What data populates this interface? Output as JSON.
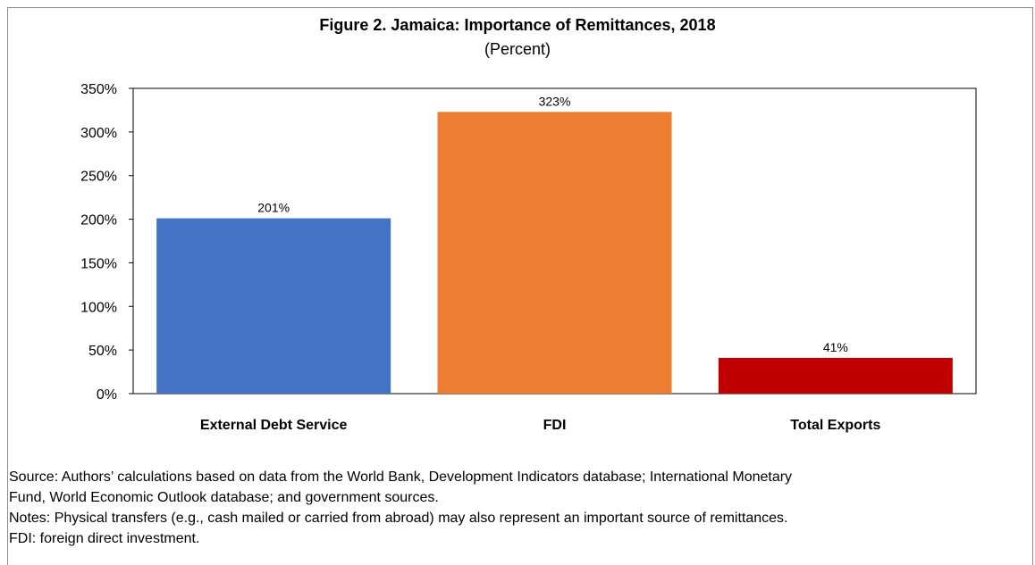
{
  "chart_data": {
    "type": "bar",
    "title": "Figure 2. Jamaica: Importance of Remittances, 2018",
    "subtitle": "(Percent)",
    "categories": [
      "External Debt Service",
      "FDI",
      "Total Exports"
    ],
    "values": [
      201,
      323,
      41
    ],
    "data_labels": [
      "201%",
      "323%",
      "41%"
    ],
    "bar_colors": [
      "#4472c4",
      "#ed7d31",
      "#c00000"
    ],
    "ylim": [
      0,
      350
    ],
    "yticks": [
      0,
      50,
      100,
      150,
      200,
      250,
      300,
      350
    ],
    "ytick_labels": [
      "0%",
      "50%",
      "100%",
      "150%",
      "200%",
      "250%",
      "300%",
      "350%"
    ],
    "xlabel": "",
    "ylabel": "",
    "grid": false,
    "legend": "none"
  },
  "notes": {
    "source_line1": "Source: Authors’ calculations based on data from the World Bank, Development Indicators database; International Monetary",
    "source_line2": "Fund, World Economic Outlook database; and government sources.",
    "notes_line1": "Notes: Physical transfers (e.g., cash mailed or carried from abroad) may also represent an important source of remittances.",
    "notes_line2": "FDI: foreign direct investment."
  }
}
